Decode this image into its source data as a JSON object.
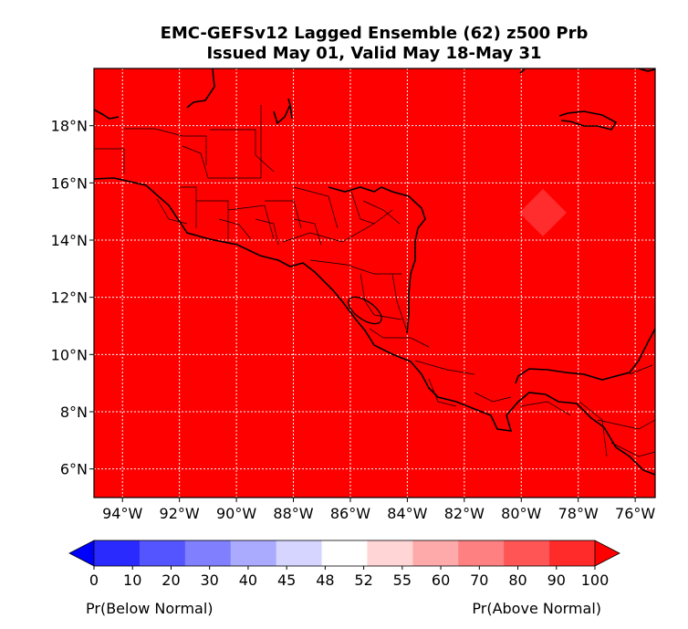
{
  "title": {
    "line1": "EMC-GEFSv12 Lagged Ensemble (62) z500 Prb",
    "line2": "Issued May 01, Valid May 18-May 31"
  },
  "map": {
    "background_color": "#ff0000",
    "highlight_color": "#ff2d2d",
    "lon_labels": [
      "94°W",
      "92°W",
      "90°W",
      "88°W",
      "86°W",
      "84°W",
      "82°W",
      "80°W",
      "78°W",
      "76°W"
    ],
    "lat_labels": [
      "18°N",
      "16°N",
      "14°N",
      "12°N",
      "10°N",
      "8°N",
      "6°N"
    ],
    "lon_ticks": [
      -94,
      -92,
      -90,
      -88,
      -86,
      -84,
      -82,
      -80,
      -78,
      -76
    ],
    "lat_ticks": [
      18,
      16,
      14,
      12,
      10,
      8,
      6
    ],
    "extent": {
      "lon": [
        -95.0,
        -75.3
      ],
      "lat": [
        5.0,
        20.0
      ]
    },
    "gridlines": true
  },
  "colorbar": {
    "colors": [
      "#0000ff",
      "#2a2aff",
      "#5555ff",
      "#8080ff",
      "#aaaaff",
      "#d5d5ff",
      "#ffffff",
      "#ffd5d5",
      "#ffaaaa",
      "#ff8080",
      "#ff5555",
      "#ff2a2a",
      "#ff0000"
    ],
    "tick_labels": [
      "0",
      "10",
      "20",
      "30",
      "40",
      "45",
      "48",
      "52",
      "55",
      "60",
      "70",
      "80",
      "90",
      "100"
    ],
    "left_label": "Pr(Below Normal)",
    "right_label": "Pr(Above Normal)"
  }
}
